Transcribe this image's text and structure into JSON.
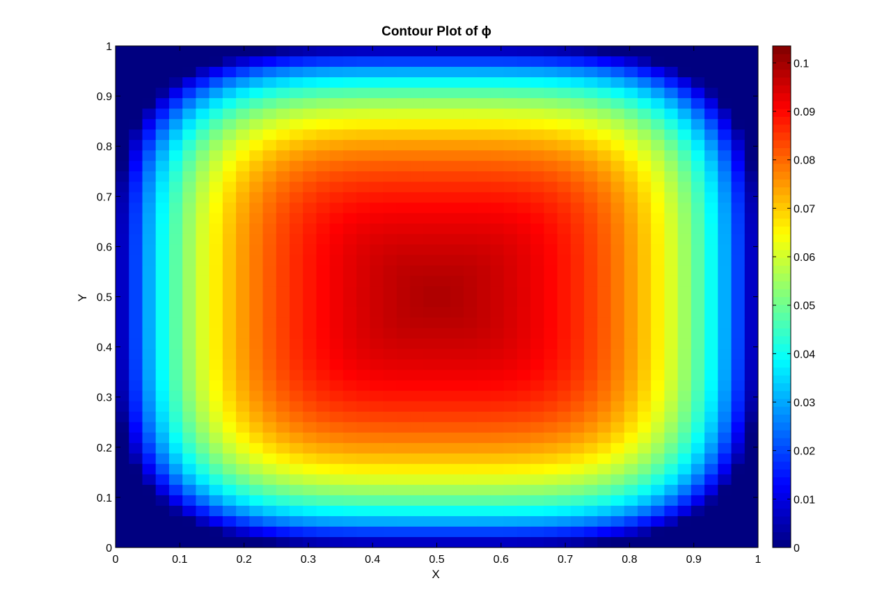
{
  "chart_data": {
    "type": "heatmap",
    "title": "Contour Plot of ϕ",
    "xlabel": "X",
    "ylabel": "Y",
    "xlim": [
      0,
      1
    ],
    "ylim": [
      0,
      1
    ],
    "x_ticks": [
      0,
      0.1,
      0.2,
      0.3,
      0.4,
      0.5,
      0.6,
      0.7,
      0.8,
      0.9,
      1
    ],
    "y_ticks": [
      0,
      0.1,
      0.2,
      0.3,
      0.4,
      0.5,
      0.6,
      0.7,
      0.8,
      0.9,
      1
    ],
    "x_tick_labels": [
      "0",
      "0.1",
      "0.2",
      "0.3",
      "0.4",
      "0.5",
      "0.6",
      "0.7",
      "0.8",
      "0.9",
      "1"
    ],
    "y_tick_labels": [
      "0",
      "0.1",
      "0.2",
      "0.3",
      "0.4",
      "0.5",
      "0.6",
      "0.7",
      "0.8",
      "0.9",
      "1"
    ],
    "colormap": "jet",
    "colorbar": {
      "range": [
        0,
        0.1035
      ],
      "ticks": [
        0,
        0.01,
        0.02,
        0.03,
        0.04,
        0.05,
        0.06,
        0.07,
        0.08,
        0.09,
        0.1
      ],
      "tick_labels": [
        "0",
        "0.01",
        "0.02",
        "0.03",
        "0.04",
        "0.05",
        "0.06",
        "0.07",
        "0.08",
        "0.09",
        "0.1"
      ]
    },
    "peak": {
      "x": 0.5,
      "y": 0.5,
      "value": 0.1035
    },
    "grid": false
  }
}
